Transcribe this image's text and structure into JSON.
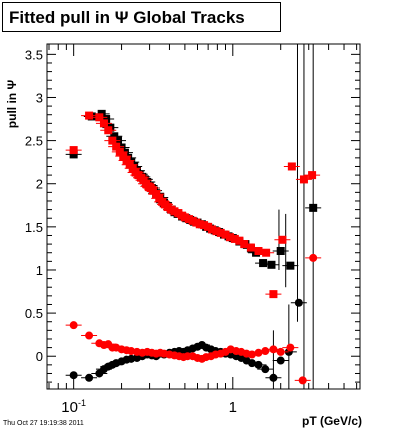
{
  "title": "Fitted pull in  Ψ   Global Tracks",
  "footer": "Thu Oct 27 19:19:38 2011",
  "chart_data": {
    "type": "scatter",
    "title": "Fitted pull in  Ψ   Global Tracks",
    "xlabel": "pT (GeV/c)",
    "ylabel": "pull in Ψ",
    "xscale": "log",
    "xlim": [
      0.068,
      6.3
    ],
    "ylim": [
      -0.38,
      3.62
    ],
    "x_ticks": [
      {
        "value": 0.1,
        "label": "10",
        "sup": "-1"
      },
      {
        "value": 1,
        "label": "1",
        "sup": ""
      }
    ],
    "y_ticks": [
      {
        "value": 0,
        "label": "0"
      },
      {
        "value": 0.5,
        "label": "0.5"
      },
      {
        "value": 1,
        "label": "1"
      },
      {
        "value": 1.5,
        "label": "1.5"
      },
      {
        "value": 2,
        "label": "2"
      },
      {
        "value": 2.5,
        "label": "2.5"
      },
      {
        "value": 3,
        "label": "3"
      },
      {
        "value": 3.5,
        "label": "3.5"
      }
    ],
    "grid": false,
    "series": [
      {
        "marker": "square",
        "color": "#000000",
        "x": [
          0.1,
          0.13,
          0.15,
          0.16,
          0.17,
          0.18,
          0.19,
          0.2,
          0.21,
          0.22,
          0.23,
          0.24,
          0.25,
          0.26,
          0.27,
          0.28,
          0.29,
          0.3,
          0.31,
          0.32,
          0.33,
          0.35,
          0.37,
          0.39,
          0.41,
          0.43,
          0.45,
          0.48,
          0.51,
          0.54,
          0.57,
          0.6,
          0.64,
          0.68,
          0.72,
          0.77,
          0.82,
          0.88,
          0.94,
          1.0,
          1.1,
          1.2,
          1.3,
          1.4,
          1.55,
          1.75,
          2.0,
          2.3,
          3.2
        ],
        "y": [
          2.34,
          2.78,
          2.81,
          2.75,
          2.65,
          2.55,
          2.5,
          2.42,
          2.36,
          2.3,
          2.25,
          2.2,
          2.15,
          2.11,
          2.08,
          2.05,
          2.02,
          1.98,
          1.95,
          1.92,
          1.89,
          1.84,
          1.78,
          1.74,
          1.7,
          1.67,
          1.65,
          1.62,
          1.6,
          1.58,
          1.56,
          1.55,
          1.53,
          1.5,
          1.48,
          1.46,
          1.44,
          1.41,
          1.39,
          1.37,
          1.33,
          1.3,
          1.25,
          1.2,
          1.08,
          1.06,
          1.22,
          1.05,
          1.72
        ]
      },
      {
        "marker": "square",
        "color": "#ff0000",
        "x": [
          0.1,
          0.125,
          0.145,
          0.155,
          0.165,
          0.175,
          0.185,
          0.195,
          0.205,
          0.215,
          0.225,
          0.235,
          0.245,
          0.255,
          0.265,
          0.275,
          0.285,
          0.295,
          0.305,
          0.315,
          0.33,
          0.345,
          0.36,
          0.375,
          0.39,
          0.41,
          0.43,
          0.455,
          0.48,
          0.5,
          0.53,
          0.56,
          0.59,
          0.62,
          0.66,
          0.7,
          0.74,
          0.79,
          0.84,
          0.9,
          0.96,
          1.03,
          1.1,
          1.18,
          1.3,
          1.45,
          1.62,
          1.8,
          2.05,
          2.35,
          2.8,
          3.15
        ],
        "y": [
          2.39,
          2.79,
          2.77,
          2.7,
          2.62,
          2.5,
          2.43,
          2.37,
          2.32,
          2.27,
          2.22,
          2.18,
          2.13,
          2.1,
          2.07,
          2.04,
          2.0,
          1.97,
          1.95,
          1.92,
          1.88,
          1.83,
          1.79,
          1.76,
          1.73,
          1.7,
          1.68,
          1.66,
          1.63,
          1.61,
          1.59,
          1.57,
          1.55,
          1.53,
          1.52,
          1.5,
          1.47,
          1.45,
          1.43,
          1.41,
          1.38,
          1.36,
          1.34,
          1.3,
          1.26,
          1.22,
          1.2,
          0.72,
          1.35,
          2.2,
          2.05,
          2.1
        ]
      },
      {
        "marker": "circle",
        "color": "#000000",
        "x": [
          0.1,
          0.125,
          0.145,
          0.155,
          0.165,
          0.175,
          0.185,
          0.2,
          0.215,
          0.23,
          0.25,
          0.27,
          0.29,
          0.31,
          0.33,
          0.35,
          0.37,
          0.4,
          0.43,
          0.46,
          0.49,
          0.52,
          0.56,
          0.6,
          0.64,
          0.68,
          0.73,
          0.78,
          0.84,
          0.9,
          0.97,
          1.05,
          1.13,
          1.22,
          1.32,
          1.45,
          1.6,
          1.8,
          2.0,
          2.25,
          2.6
        ],
        "y": [
          -0.22,
          -0.25,
          -0.2,
          -0.15,
          -0.12,
          -0.1,
          -0.08,
          -0.06,
          -0.04,
          -0.03,
          -0.02,
          0.0,
          0.02,
          0.01,
          0.0,
          0.03,
          0.02,
          0.04,
          0.05,
          0.06,
          0.05,
          0.07,
          0.09,
          0.11,
          0.13,
          0.1,
          0.08,
          0.06,
          0.05,
          0.03,
          0.02,
          0.0,
          -0.02,
          -0.05,
          -0.08,
          -0.1,
          -0.15,
          -0.25,
          -0.05,
          0.05,
          0.62
        ]
      },
      {
        "marker": "circle",
        "color": "#ff0000",
        "x": [
          0.1,
          0.125,
          0.145,
          0.155,
          0.165,
          0.175,
          0.185,
          0.2,
          0.215,
          0.23,
          0.25,
          0.27,
          0.29,
          0.31,
          0.33,
          0.35,
          0.37,
          0.4,
          0.43,
          0.46,
          0.49,
          0.52,
          0.56,
          0.6,
          0.64,
          0.68,
          0.73,
          0.78,
          0.84,
          0.9,
          0.97,
          1.05,
          1.13,
          1.22,
          1.32,
          1.45,
          1.6,
          1.8,
          2.0,
          2.3,
          2.75,
          3.2
        ],
        "y": [
          0.36,
          0.24,
          0.15,
          0.13,
          0.14,
          0.1,
          0.1,
          0.08,
          0.07,
          0.06,
          0.05,
          0.04,
          0.05,
          0.04,
          0.03,
          0.04,
          0.03,
          0.02,
          0.01,
          0.0,
          -0.01,
          0.0,
          0.0,
          -0.02,
          -0.03,
          -0.01,
          0.0,
          0.02,
          0.03,
          0.05,
          0.08,
          0.06,
          0.05,
          0.03,
          0.02,
          0.04,
          0.06,
          0.08,
          0.05,
          0.1,
          -0.28,
          1.14
        ]
      }
    ],
    "error_bars": [
      {
        "x": 1.95,
        "y_low": 1.0,
        "y_high": 1.7
      },
      {
        "x": 2.15,
        "y_low": 0.8,
        "y_high": 1.65
      },
      {
        "x": 2.55,
        "y_low": 0.4,
        "y_high": 3.62
      },
      {
        "x": 2.8,
        "y_low": -0.38,
        "y_high": 3.62
      },
      {
        "x": 3.2,
        "y_low": -0.38,
        "y_high": 3.62
      },
      {
        "x": 1.8,
        "y_low": -0.38,
        "y_high": 0.3
      },
      {
        "x": 2.25,
        "y_low": -0.38,
        "y_high": 0.6
      }
    ]
  }
}
